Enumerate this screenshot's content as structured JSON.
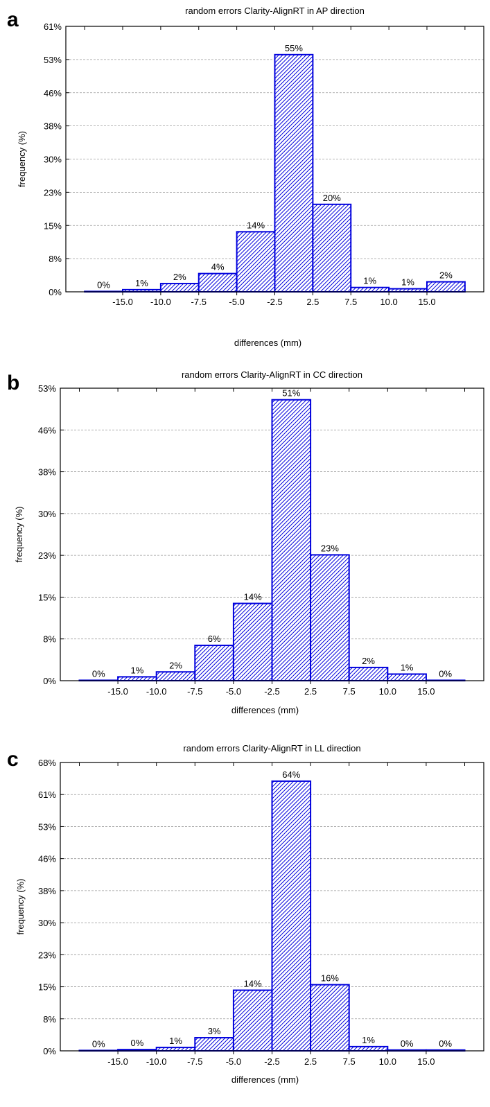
{
  "chart_data": [
    {
      "type": "bar",
      "panel": "a",
      "title": "random errors Clarity-AlignRT in AP direction",
      "xlabel": "differences (mm)",
      "ylabel": "frequency (%)",
      "x_ticks": [
        "-15.0",
        "-10.0",
        "-7.5",
        "-5.0",
        "-2.5",
        "2.5",
        "7.5",
        "10.0",
        "15.0"
      ],
      "y_ticks": [
        "0%",
        "8%",
        "15%",
        "23%",
        "30%",
        "38%",
        "46%",
        "53%",
        "61%"
      ],
      "ylim": [
        0,
        61
      ],
      "values": [
        0,
        0.5,
        1.9,
        4.2,
        13.8,
        54.5,
        20.1,
        1.0,
        0.7,
        2.3
      ],
      "value_labels": [
        "0%",
        "1%",
        "2%",
        "4%",
        "14%",
        "55%",
        "20%",
        "1%",
        "1%",
        "2%"
      ],
      "grid": true,
      "bar_color": "#0000dd"
    },
    {
      "type": "bar",
      "panel": "b",
      "title": "random errors Clarity-AlignRT in CC direction",
      "xlabel": "differences (mm)",
      "ylabel": "frequency (%)",
      "x_ticks": [
        "-15.0",
        "-10.0",
        "-7.5",
        "-5.0",
        "-2.5",
        "2.5",
        "7.5",
        "10.0",
        "15.0"
      ],
      "y_ticks": [
        "0%",
        "8%",
        "15%",
        "23%",
        "30%",
        "38%",
        "46%",
        "53%"
      ],
      "ylim": [
        0,
        53
      ],
      "values": [
        0,
        0.7,
        1.6,
        6.4,
        14.0,
        50.9,
        22.8,
        2.4,
        1.2,
        0
      ],
      "value_labels": [
        "0%",
        "1%",
        "2%",
        "6%",
        "14%",
        "51%",
        "23%",
        "2%",
        "1%",
        "0%"
      ],
      "grid": true,
      "bar_color": "#0000dd"
    },
    {
      "type": "bar",
      "panel": "c",
      "title": "random errors Clarity-AlignRT in LL direction",
      "xlabel": "differences (mm)",
      "ylabel": "frequency (%)",
      "x_ticks": [
        "-15.0",
        "-10.0",
        "-7.5",
        "-5.0",
        "-2.5",
        "2.5",
        "7.5",
        "10.0",
        "15.0"
      ],
      "y_ticks": [
        "0%",
        "8%",
        "15%",
        "23%",
        "30%",
        "38%",
        "46%",
        "53%",
        "61%",
        "68%"
      ],
      "ylim": [
        0,
        68
      ],
      "values": [
        0.1,
        0.3,
        0.8,
        3.1,
        14.3,
        63.6,
        15.6,
        1.0,
        0.2,
        0.2
      ],
      "value_labels": [
        "0%",
        "0%",
        "1%",
        "3%",
        "14%",
        "64%",
        "16%",
        "1%",
        "0%",
        "0%"
      ],
      "grid": true,
      "bar_color": "#0000dd"
    }
  ]
}
